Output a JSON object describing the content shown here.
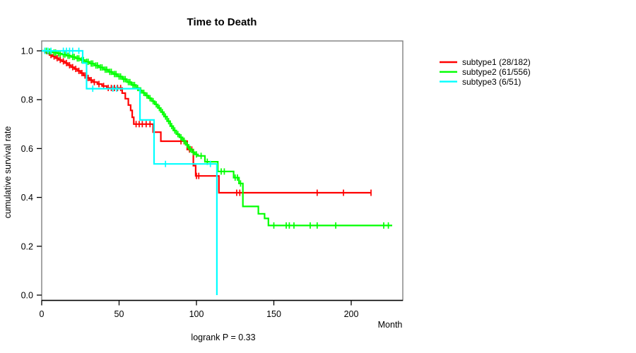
{
  "page": {
    "background": "#ffffff",
    "box_color": "#7f7f7f",
    "axis_color": "#000000"
  },
  "chart_data": {
    "type": "line",
    "variant": "kaplan-meier-step",
    "title": "Time to Death",
    "xlabel": "Month",
    "ylabel": "cumulative survival rate",
    "footnote": "logrank P = 0.33",
    "xlim": [
      0,
      233
    ],
    "ylim": [
      0,
      1
    ],
    "xticks": [
      0,
      50,
      100,
      150,
      200
    ],
    "yticks": [
      0.0,
      0.2,
      0.4,
      0.6,
      0.8,
      1.0
    ],
    "grid": false,
    "legend_position": "right",
    "series": [
      {
        "name": "subtype1 (28/182)",
        "color": "#ff0000",
        "steps": [
          [
            0,
            1.0
          ],
          [
            2,
            0.994
          ],
          [
            3.5,
            0.989
          ],
          [
            5,
            0.983
          ],
          [
            7,
            0.977
          ],
          [
            9,
            0.97
          ],
          [
            11,
            0.963
          ],
          [
            13,
            0.957
          ],
          [
            15,
            0.95
          ],
          [
            17,
            0.941
          ],
          [
            19,
            0.933
          ],
          [
            21,
            0.926
          ],
          [
            23,
            0.918
          ],
          [
            25,
            0.909
          ],
          [
            27,
            0.899
          ],
          [
            29,
            0.889
          ],
          [
            31,
            0.88
          ],
          [
            33,
            0.872
          ],
          [
            36,
            0.864
          ],
          [
            39,
            0.856
          ],
          [
            42,
            0.848
          ],
          [
            52,
            0.827
          ],
          [
            54,
            0.804
          ],
          [
            56,
            0.778
          ],
          [
            57.5,
            0.756
          ],
          [
            58.5,
            0.728
          ],
          [
            59.5,
            0.7
          ],
          [
            72,
            0.667
          ],
          [
            77,
            0.63
          ],
          [
            94,
            0.596
          ],
          [
            98,
            0.53
          ],
          [
            99.5,
            0.488
          ],
          [
            114.5,
            0.419
          ]
        ],
        "end_month": 212.8,
        "censor_months": [
          6,
          8,
          10,
          12,
          14,
          16,
          18,
          20,
          22,
          24,
          26,
          28,
          30,
          32,
          34,
          37,
          40,
          43,
          45,
          47,
          49,
          51,
          61,
          63,
          65,
          67.5,
          70,
          90,
          92,
          95.5,
          97,
          100,
          101.5,
          126,
          128,
          178,
          195,
          212.8
        ]
      },
      {
        "name": "subtype2 (61/556)",
        "color": "#00ff00",
        "steps": [
          [
            0,
            1.0
          ],
          [
            4,
            0.997
          ],
          [
            7,
            0.993
          ],
          [
            10,
            0.989
          ],
          [
            13,
            0.985
          ],
          [
            16,
            0.98
          ],
          [
            19,
            0.975
          ],
          [
            22,
            0.969
          ],
          [
            25,
            0.962
          ],
          [
            28,
            0.955
          ],
          [
            31,
            0.948
          ],
          [
            34,
            0.94
          ],
          [
            37,
            0.932
          ],
          [
            40,
            0.923
          ],
          [
            43,
            0.914
          ],
          [
            46,
            0.905
          ],
          [
            49,
            0.895
          ],
          [
            52,
            0.884
          ],
          [
            55,
            0.872
          ],
          [
            58,
            0.86
          ],
          [
            61,
            0.848
          ],
          [
            63,
            0.838
          ],
          [
            65,
            0.828
          ],
          [
            67,
            0.817
          ],
          [
            69,
            0.806
          ],
          [
            71,
            0.794
          ],
          [
            73,
            0.781
          ],
          [
            75,
            0.766
          ],
          [
            77,
            0.749
          ],
          [
            79,
            0.731
          ],
          [
            81,
            0.712
          ],
          [
            83,
            0.692
          ],
          [
            85,
            0.674
          ],
          [
            87,
            0.659
          ],
          [
            89,
            0.646
          ],
          [
            91,
            0.632
          ],
          [
            93,
            0.615
          ],
          [
            95,
            0.598
          ],
          [
            97,
            0.585
          ],
          [
            99,
            0.576
          ],
          [
            101,
            0.57
          ],
          [
            105.5,
            0.546
          ],
          [
            113.8,
            0.506
          ],
          [
            124,
            0.481
          ],
          [
            127.5,
            0.457
          ],
          [
            130,
            0.363
          ],
          [
            140,
            0.333
          ],
          [
            144,
            0.314
          ],
          [
            146.5,
            0.285
          ]
        ],
        "end_month": 226.5,
        "censor_months": [
          3,
          5,
          6,
          8,
          9,
          11,
          12,
          14,
          15,
          17,
          18,
          20,
          21,
          23,
          24,
          26,
          27,
          29,
          30,
          32,
          33,
          35,
          36,
          38,
          39,
          41,
          42,
          44,
          45,
          47,
          48,
          50,
          51,
          53,
          54,
          56,
          57,
          59,
          60,
          62,
          64,
          66,
          68,
          70,
          72,
          74,
          76,
          78,
          80,
          82,
          84,
          86,
          88,
          90,
          92,
          94,
          96,
          98,
          100,
          103,
          107,
          116,
          118,
          125,
          126.5,
          128.5,
          150,
          158,
          160,
          163,
          173.5,
          178,
          190,
          221,
          224
        ]
      },
      {
        "name": "subtype3 (6/51)",
        "color": "#00ffff",
        "steps": [
          [
            0,
            1.0
          ],
          [
            26.5,
            0.95
          ],
          [
            29,
            0.845
          ],
          [
            63.5,
            0.717
          ],
          [
            72.6,
            0.537
          ],
          [
            113.2,
            0.0
          ]
        ],
        "end_month": 113.2,
        "censor_months": [
          2,
          4,
          6,
          14,
          16,
          18,
          20,
          24,
          33,
          46,
          48.5,
          80,
          109
        ]
      }
    ]
  }
}
